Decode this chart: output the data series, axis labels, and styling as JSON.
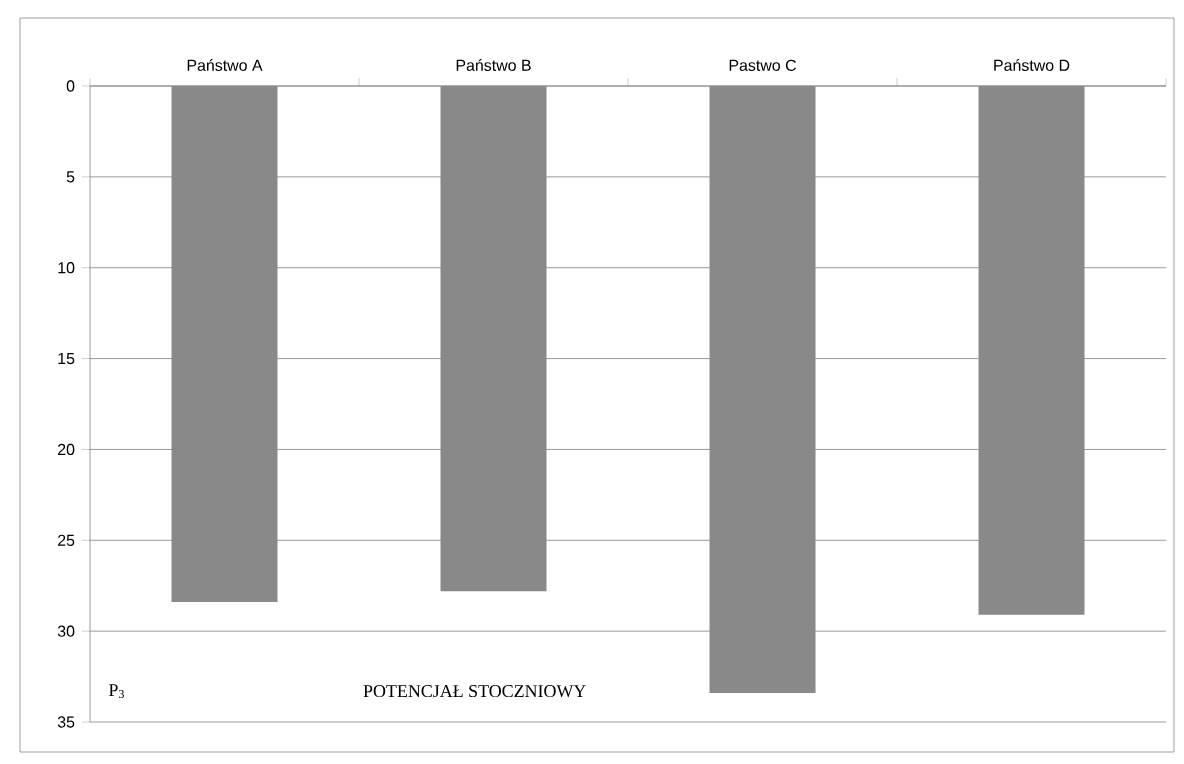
{
  "chart_data": {
    "type": "bar",
    "title": "POTENCJAŁ STOCZNIOWY",
    "annotations": [
      "P$_{3}$"
    ],
    "categories": [
      "Państwo A",
      "Państwo B",
      "Pastwo C",
      "Państwo D"
    ],
    "values": [
      28.4,
      27.8,
      33.4,
      29.1
    ],
    "color": "#898989",
    "ylim": [
      35,
      0
    ],
    "yticks": [
      0,
      5,
      10,
      15,
      20,
      25,
      30,
      35
    ],
    "grid": "y"
  }
}
